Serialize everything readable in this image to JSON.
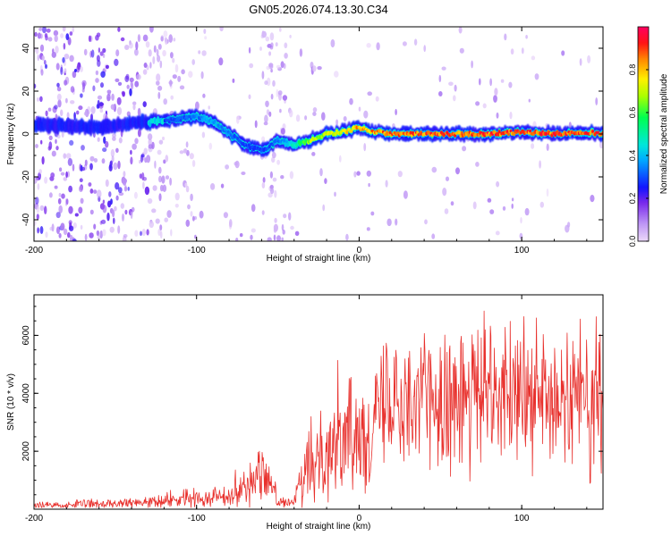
{
  "title": "GN05.2026.074.13.30.C34",
  "chart_data": [
    {
      "type": "heatmap",
      "panel": "spectrogram",
      "xlabel": "Height of straight line (km)",
      "ylabel": "Frequency (Hz)",
      "xlim": [
        -200,
        150
      ],
      "ylim": [
        -50,
        50
      ],
      "x_ticks": [
        -200,
        -100,
        0,
        100
      ],
      "y_ticks": [
        -40,
        -20,
        0,
        20,
        40
      ],
      "x_tick_labels": [
        "-200",
        "-100",
        "0",
        "100"
      ],
      "y_tick_labels": [
        "-40",
        "-20",
        "0",
        "20",
        "40"
      ],
      "colorbar": {
        "label": "Normalized spectral amplitude",
        "range": [
          0,
          1
        ],
        "ticks": [
          0.0,
          0.2,
          0.4,
          0.6,
          0.8
        ],
        "tick_labels": [
          "0.0",
          "0.2",
          "0.4",
          "0.6",
          "0.8"
        ]
      },
      "ridge": {
        "x": [
          -200,
          -180,
          -160,
          -140,
          -120,
          -100,
          -90,
          -80,
          -70,
          -60,
          -50,
          -40,
          -30,
          -20,
          -10,
          0,
          10,
          20,
          40,
          60,
          80,
          100,
          120,
          140,
          150
        ],
        "frequency": [
          4,
          4,
          3,
          5,
          6,
          8,
          6,
          0,
          -5,
          -8,
          -3,
          -5,
          -3,
          0,
          1,
          3,
          1,
          0,
          0,
          0,
          0,
          1,
          0,
          1,
          0
        ],
        "amplitude": [
          0.15,
          0.15,
          0.15,
          0.2,
          0.3,
          0.35,
          0.4,
          0.35,
          0.3,
          0.3,
          0.35,
          0.5,
          0.7,
          0.75,
          0.8,
          0.85,
          0.88,
          0.9,
          0.92,
          0.92,
          0.93,
          0.93,
          0.93,
          0.93,
          0.93
        ]
      }
    },
    {
      "type": "line",
      "panel": "snr",
      "xlabel": "Height of straight line (km)",
      "ylabel": "SNR (10 * v/v)",
      "xlim": [
        -200,
        150
      ],
      "ylim": [
        0,
        7400
      ],
      "x_ticks": [
        -200,
        -100,
        0,
        100
      ],
      "y_ticks": [
        2000,
        4000,
        6000
      ],
      "x_tick_labels": [
        "-200",
        "-100",
        "0",
        "100"
      ],
      "y_tick_labels": [
        "2000",
        "4000",
        "6000"
      ],
      "color": "#e8302c",
      "series": [
        {
          "name": "SNR",
          "x": [
            -200,
            -180,
            -160,
            -140,
            -120,
            -110,
            -100,
            -90,
            -80,
            -70,
            -60,
            -55,
            -50,
            -45,
            -40,
            -35,
            -30,
            -25,
            -20,
            -10,
            0,
            10,
            20,
            30,
            40,
            50,
            60,
            70,
            80,
            90,
            100,
            110,
            120,
            130,
            140,
            150
          ],
          "mean": [
            150,
            150,
            180,
            200,
            300,
            350,
            400,
            450,
            500,
            800,
            1300,
            1000,
            300,
            200,
            250,
            1000,
            1500,
            1800,
            2200,
            2500,
            2600,
            3200,
            4000,
            4000,
            3900,
            3900,
            3800,
            3900,
            3900,
            4000,
            3800,
            3900,
            3700,
            3800,
            3700,
            3500
          ],
          "spread": [
            80,
            80,
            100,
            110,
            150,
            170,
            200,
            220,
            250,
            450,
            700,
            500,
            120,
            100,
            130,
            600,
            800,
            900,
            1100,
            1200,
            1200,
            1300,
            1500,
            1500,
            1500,
            1500,
            1500,
            1500,
            1500,
            1500,
            1500,
            1500,
            1500,
            1500,
            1500,
            1400
          ]
        }
      ]
    }
  ]
}
